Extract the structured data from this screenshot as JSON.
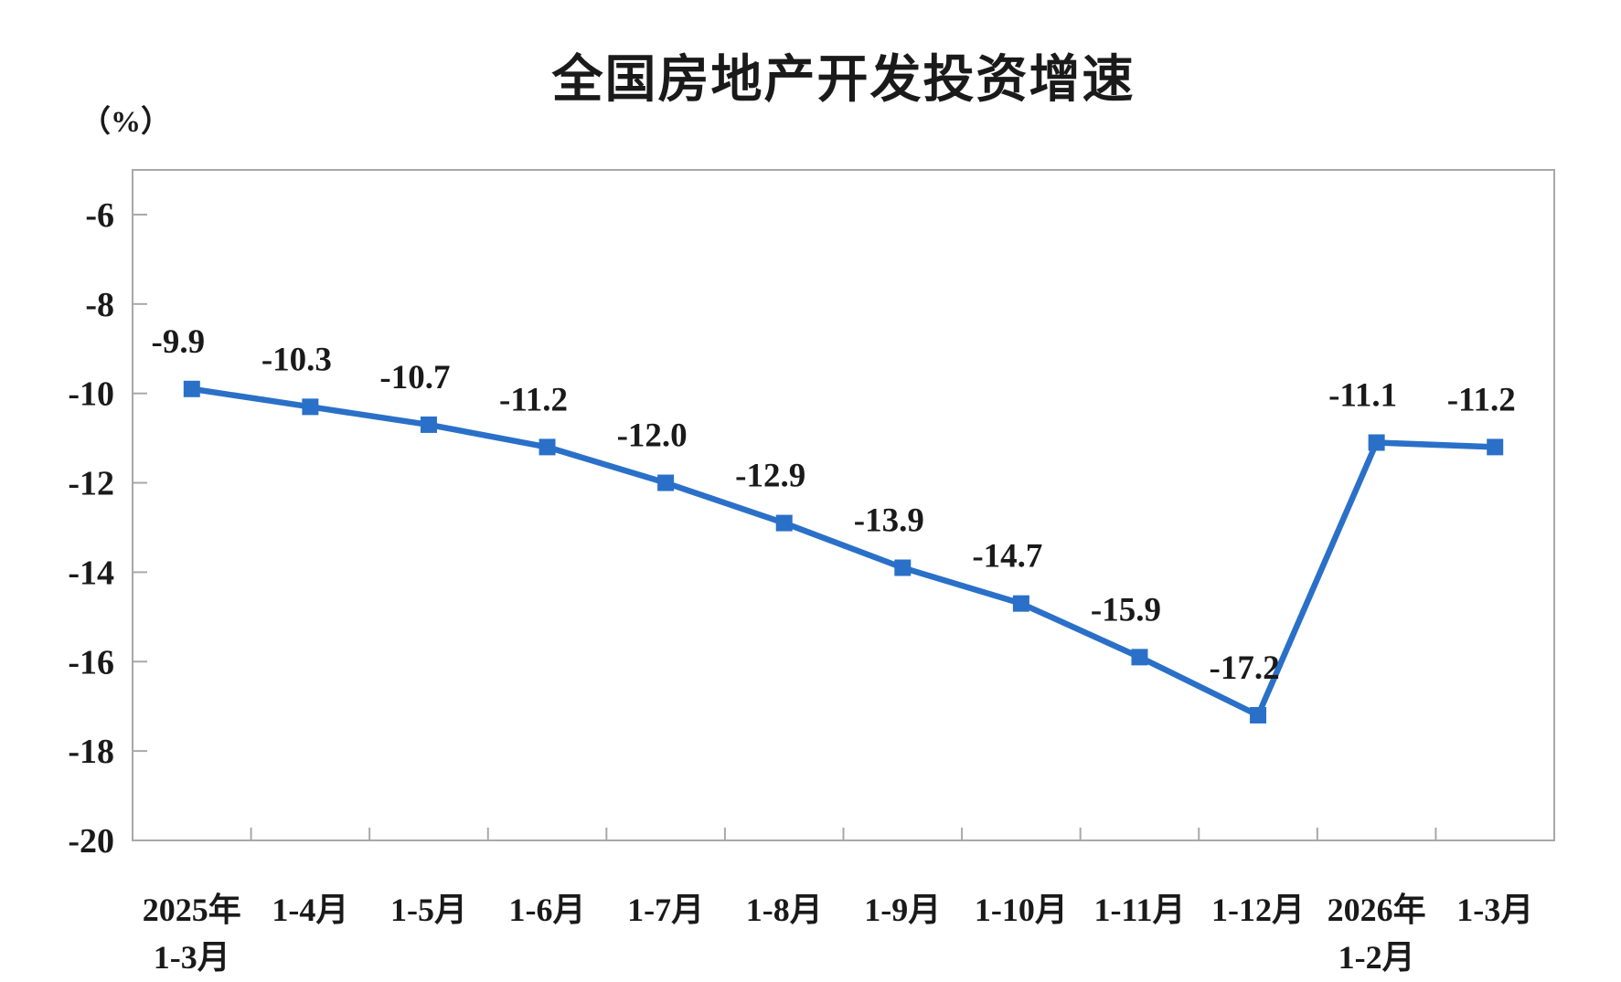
{
  "page": {
    "background": "#ffffff"
  },
  "chart_data": {
    "type": "line",
    "title": "全国房地产开发投资增速",
    "unit_label": "（%）",
    "categories": [
      "2025年\n1-3月",
      "1-4月",
      "1-5月",
      "1-6月",
      "1-7月",
      "1-8月",
      "1-9月",
      "1-10月",
      "1-11月",
      "1-12月",
      "2026年\n1-2月",
      "1-3月"
    ],
    "values": [
      -9.9,
      -10.3,
      -10.7,
      -11.2,
      -12.0,
      -12.9,
      -13.9,
      -14.7,
      -15.9,
      -17.2,
      -11.1,
      -11.2
    ],
    "data_labels": [
      "-9.9",
      "-10.3",
      "-10.7",
      "-11.2",
      "-12.0",
      "-12.9",
      "-13.9",
      "-14.7",
      "-15.9",
      "-17.2",
      "-11.1",
      "-11.2"
    ],
    "xlabel": "",
    "ylabel": "（%）",
    "ylim": [
      -20,
      -5
    ],
    "y_ticks": [
      -6,
      -8,
      -10,
      -12,
      -14,
      -16,
      -18,
      -20
    ],
    "y_tick_labels": [
      "-6",
      "-8",
      "-10",
      "-12",
      "-14",
      "-16",
      "-18",
      "-20"
    ],
    "grid": false,
    "legend": "none",
    "marker": "square",
    "colors": {
      "series": "#2A70C8",
      "axis": "#A8A8A8",
      "text": "#1A1A1A",
      "plot_background": "#FFFFFF"
    }
  }
}
